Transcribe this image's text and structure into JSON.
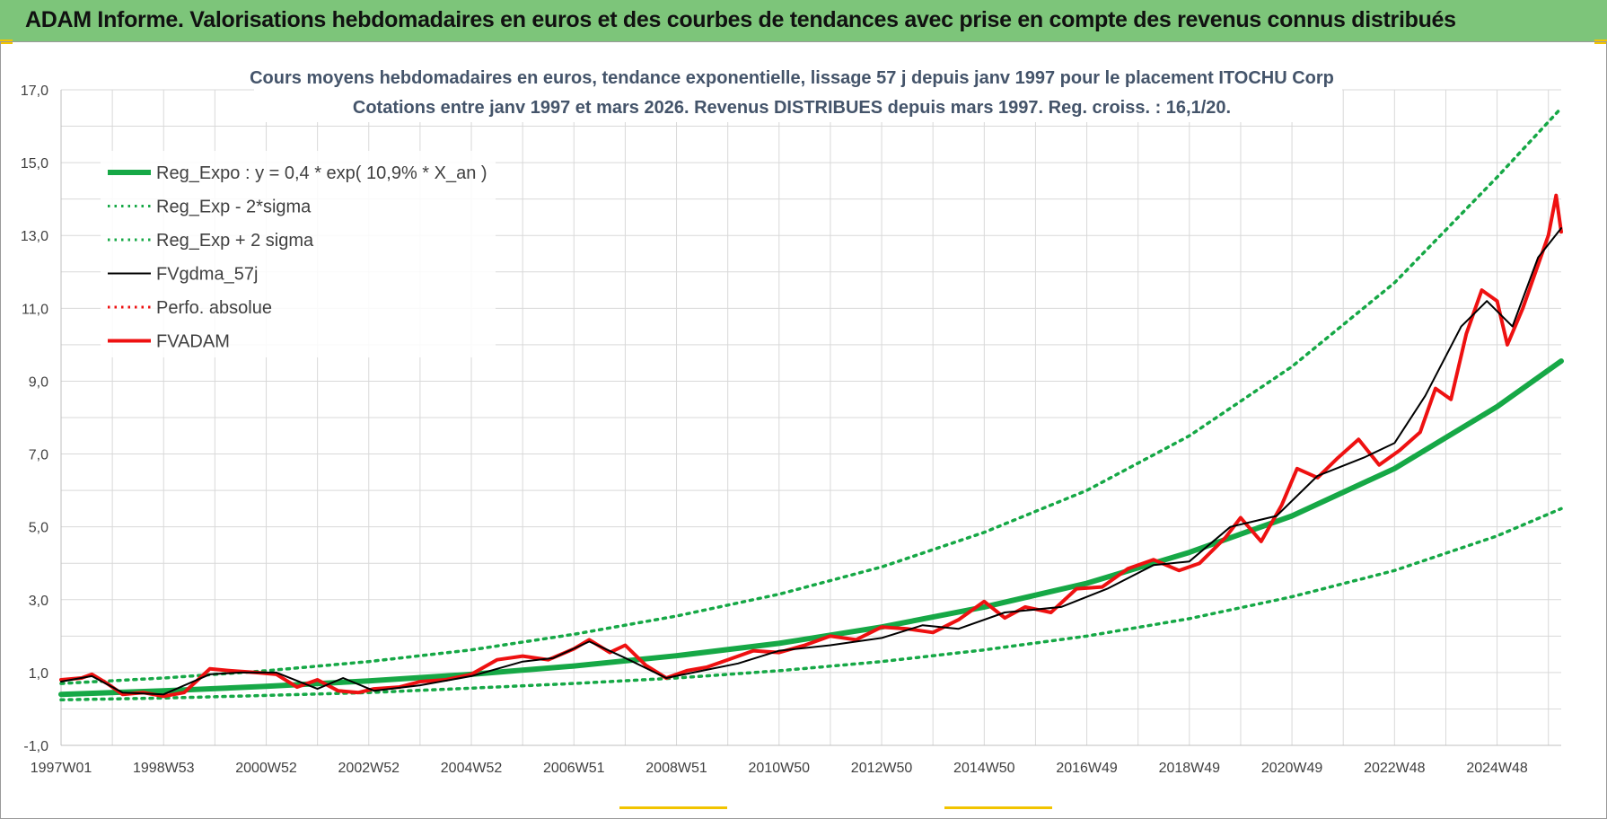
{
  "banner": {
    "title": "ADAM Informe. Valorisations hebdomadaires en euros et des courbes de tendances avec prise en compte des revenus connus distribués"
  },
  "colors": {
    "banner_bg": "#7dc57a",
    "reg_green": "#16a846",
    "fvadam_red": "#ee1111",
    "gdma_black": "#000000",
    "grid": "#d9d9d9",
    "accent_yellow": "#f2c400"
  },
  "chart_data": {
    "type": "line",
    "title": "Cours moyens hebdomadaires en euros, tendance exponentielle, lissage 57 j depuis janv 1997 pour le placement ITOCHU Corp",
    "subtitle": "Cotations entre janv 1997 et mars 2026. Revenus DISTRIBUES depuis mars 1997. Reg. croiss. : 16,1/20.",
    "xlabel": "",
    "ylabel": "",
    "ylim": [
      -1,
      17
    ],
    "yticks": [
      "17,0",
      "15,0",
      "13,0",
      "11,0",
      "9,0",
      "7,0",
      "5,0",
      "3,0",
      "1,0",
      "-1,0"
    ],
    "ytick_values": [
      17,
      15,
      13,
      11,
      9,
      7,
      5,
      3,
      1,
      -1
    ],
    "xlim": [
      1997.0,
      2026.25
    ],
    "xticks": [
      "1997W01",
      "1998W53",
      "2000W52",
      "2002W52",
      "2004W52",
      "2006W51",
      "2008W51",
      "2010W50",
      "2012W50",
      "2014W50",
      "2016W49",
      "2018W49",
      "2020W49",
      "2022W48",
      "2024W48"
    ],
    "xtick_values": [
      1997.0,
      1999.0,
      2001.0,
      2003.0,
      2005.0,
      2007.0,
      2009.0,
      2011.0,
      2013.0,
      2015.0,
      2017.0,
      2019.0,
      2021.0,
      2023.0,
      2025.0
    ],
    "legend_position": "top-left",
    "series": [
      {
        "name": "Reg_Expo : y = 0,4 * exp( 10,9% *  X_an )",
        "style": "solid-thick",
        "color": "#16a846",
        "x": [
          1997,
          1999,
          2001,
          2003,
          2005,
          2007,
          2009,
          2011,
          2013,
          2015,
          2017,
          2019,
          2021,
          2023,
          2025,
          2026.25
        ],
        "values": [
          0.4,
          0.5,
          0.62,
          0.77,
          0.95,
          1.18,
          1.46,
          1.8,
          2.25,
          2.8,
          3.45,
          4.3,
          5.3,
          6.6,
          8.3,
          9.55
        ]
      },
      {
        "name": "Reg_Exp - 2*sigma",
        "style": "dotted",
        "color": "#16a846",
        "x": [
          1997,
          1999,
          2001,
          2003,
          2005,
          2007,
          2009,
          2011,
          2013,
          2015,
          2017,
          2019,
          2021,
          2023,
          2025,
          2026.25
        ],
        "values": [
          0.25,
          0.3,
          0.37,
          0.45,
          0.57,
          0.7,
          0.85,
          1.05,
          1.3,
          1.62,
          2.0,
          2.48,
          3.08,
          3.8,
          4.75,
          5.5
        ]
      },
      {
        "name": "Reg_Exp + 2 sigma",
        "style": "dotted",
        "color": "#16a846",
        "x": [
          1997,
          1999,
          2001,
          2003,
          2005,
          2007,
          2009,
          2011,
          2013,
          2015,
          2017,
          2019,
          2021,
          2023,
          2025,
          2026.25
        ],
        "values": [
          0.7,
          0.85,
          1.05,
          1.3,
          1.62,
          2.05,
          2.55,
          3.15,
          3.9,
          4.85,
          6.0,
          7.5,
          9.4,
          11.7,
          14.6,
          16.5
        ]
      },
      {
        "name": "FVgdma_57j",
        "style": "solid",
        "color": "#000000",
        "x": [
          1997,
          1997.6,
          1998.2,
          1999,
          1999.9,
          2000.5,
          2001.2,
          2002,
          2002.5,
          2003.1,
          2004,
          2005,
          2006,
          2006.6,
          2007.3,
          2008,
          2008.8,
          2009.5,
          2010.2,
          2011,
          2012,
          2013,
          2013.8,
          2014.5,
          2015.4,
          2016.5,
          2017.4,
          2018.3,
          2019,
          2019.8,
          2020.7,
          2021.5,
          2022.4,
          2023,
          2023.6,
          2024.3,
          2024.8,
          2025.3,
          2025.8,
          2026.25
        ],
        "values": [
          0.75,
          0.9,
          0.45,
          0.4,
          0.95,
          1.0,
          1.0,
          0.55,
          0.85,
          0.5,
          0.65,
          0.9,
          1.3,
          1.4,
          1.85,
          1.4,
          0.85,
          1.05,
          1.25,
          1.6,
          1.75,
          1.95,
          2.3,
          2.2,
          2.65,
          2.8,
          3.3,
          3.95,
          4.05,
          5.0,
          5.3,
          6.4,
          6.9,
          7.3,
          8.6,
          10.5,
          11.2,
          10.5,
          12.4,
          13.2
        ]
      },
      {
        "name": "Perfo. absolue",
        "style": "dotted",
        "color": "#ee1111",
        "x": [],
        "values": []
      },
      {
        "name": "FVADAM",
        "style": "solid-thick",
        "color": "#ee1111",
        "x": [
          1997,
          1997.4,
          1997.6,
          1997.9,
          1998.2,
          1998.6,
          1999,
          1999.4,
          1999.9,
          2000.3,
          2000.8,
          2001.2,
          2001.6,
          2002,
          2002.4,
          2002.8,
          2003.1,
          2003.6,
          2004,
          2004.5,
          2005,
          2005.5,
          2006,
          2006.5,
          2007,
          2007.3,
          2007.7,
          2008,
          2008.4,
          2008.8,
          2009.2,
          2009.6,
          2010,
          2010.5,
          2011,
          2011.5,
          2012,
          2012.5,
          2013,
          2013.5,
          2014,
          2014.5,
          2015,
          2015.4,
          2015.8,
          2016.3,
          2016.8,
          2017.3,
          2017.8,
          2018.3,
          2018.8,
          2019.2,
          2019.7,
          2020,
          2020.4,
          2020.8,
          2021.1,
          2021.5,
          2021.9,
          2022.3,
          2022.7,
          2023.1,
          2023.5,
          2023.8,
          2024.1,
          2024.4,
          2024.7,
          2025,
          2025.2,
          2025.5,
          2025.8,
          2026.0,
          2026.15,
          2026.25
        ],
        "values": [
          0.8,
          0.85,
          0.95,
          0.7,
          0.4,
          0.45,
          0.35,
          0.45,
          1.1,
          1.05,
          1.0,
          0.95,
          0.6,
          0.8,
          0.5,
          0.45,
          0.55,
          0.6,
          0.75,
          0.8,
          0.95,
          1.35,
          1.45,
          1.35,
          1.65,
          1.9,
          1.55,
          1.75,
          1.2,
          0.85,
          1.05,
          1.15,
          1.35,
          1.6,
          1.55,
          1.75,
          2.0,
          1.9,
          2.25,
          2.2,
          2.1,
          2.45,
          2.95,
          2.5,
          2.8,
          2.65,
          3.3,
          3.35,
          3.85,
          4.1,
          3.8,
          4.0,
          4.7,
          5.25,
          4.6,
          5.6,
          6.6,
          6.35,
          6.9,
          7.4,
          6.7,
          7.1,
          7.6,
          8.8,
          8.5,
          10.3,
          11.5,
          11.2,
          10.0,
          11.0,
          12.2,
          13.0,
          14.1,
          13.1
        ]
      }
    ]
  }
}
